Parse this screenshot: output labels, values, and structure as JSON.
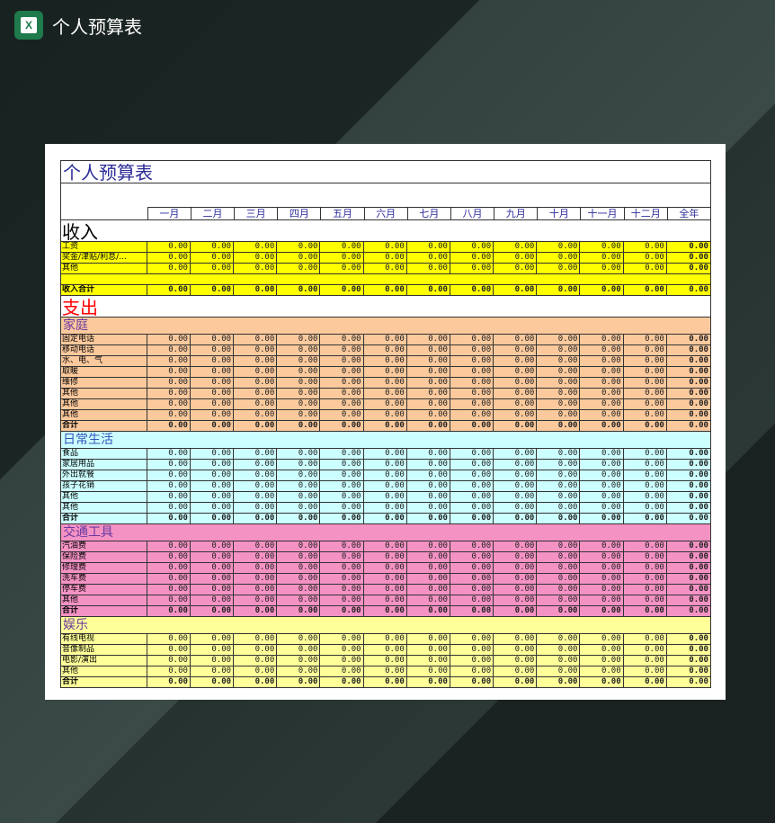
{
  "app": {
    "title": "个人预算表",
    "icon": "excel-icon"
  },
  "sheet": {
    "title": "个人预算表",
    "months": [
      "一月",
      "二月",
      "三月",
      "四月",
      "五月",
      "六月",
      "七月",
      "八月",
      "九月",
      "十月",
      "十一月",
      "十二月",
      "全年"
    ],
    "income": {
      "title": "收入",
      "color": "#ffff00",
      "rows": [
        {
          "label": "工资",
          "values": [
            "0.00",
            "0.00",
            "0.00",
            "0.00",
            "0.00",
            "0.00",
            "0.00",
            "0.00",
            "0.00",
            "0.00",
            "0.00",
            "0.00",
            "0.00"
          ]
        },
        {
          "label": "奖金/津贴/利息/…",
          "values": [
            "0.00",
            "0.00",
            "0.00",
            "0.00",
            "0.00",
            "0.00",
            "0.00",
            "0.00",
            "0.00",
            "0.00",
            "0.00",
            "0.00",
            "0.00"
          ]
        },
        {
          "label": "其他",
          "values": [
            "0.00",
            "0.00",
            "0.00",
            "0.00",
            "0.00",
            "0.00",
            "0.00",
            "0.00",
            "0.00",
            "0.00",
            "0.00",
            "0.00",
            "0.00"
          ]
        }
      ],
      "total": {
        "label": "收入合计",
        "values": [
          "0.00",
          "0.00",
          "0.00",
          "0.00",
          "0.00",
          "0.00",
          "0.00",
          "0.00",
          "0.00",
          "0.00",
          "0.00",
          "0.00",
          "0.00"
        ]
      }
    },
    "expense": {
      "title": "支出",
      "color": "#ff0000",
      "groups": [
        {
          "title": "家庭",
          "color": "#fbc99c",
          "rows": [
            {
              "label": "固定电话",
              "values": [
                "0.00",
                "0.00",
                "0.00",
                "0.00",
                "0.00",
                "0.00",
                "0.00",
                "0.00",
                "0.00",
                "0.00",
                "0.00",
                "0.00",
                "0.00"
              ]
            },
            {
              "label": "移动电话",
              "values": [
                "0.00",
                "0.00",
                "0.00",
                "0.00",
                "0.00",
                "0.00",
                "0.00",
                "0.00",
                "0.00",
                "0.00",
                "0.00",
                "0.00",
                "0.00"
              ]
            },
            {
              "label": "水、电、气",
              "values": [
                "0.00",
                "0.00",
                "0.00",
                "0.00",
                "0.00",
                "0.00",
                "0.00",
                "0.00",
                "0.00",
                "0.00",
                "0.00",
                "0.00",
                "0.00"
              ]
            },
            {
              "label": "取暖",
              "values": [
                "0.00",
                "0.00",
                "0.00",
                "0.00",
                "0.00",
                "0.00",
                "0.00",
                "0.00",
                "0.00",
                "0.00",
                "0.00",
                "0.00",
                "0.00"
              ]
            },
            {
              "label": "维修",
              "values": [
                "0.00",
                "0.00",
                "0.00",
                "0.00",
                "0.00",
                "0.00",
                "0.00",
                "0.00",
                "0.00",
                "0.00",
                "0.00",
                "0.00",
                "0.00"
              ]
            },
            {
              "label": "其他",
              "values": [
                "0.00",
                "0.00",
                "0.00",
                "0.00",
                "0.00",
                "0.00",
                "0.00",
                "0.00",
                "0.00",
                "0.00",
                "0.00",
                "0.00",
                "0.00"
              ]
            },
            {
              "label": "其他",
              "values": [
                "0.00",
                "0.00",
                "0.00",
                "0.00",
                "0.00",
                "0.00",
                "0.00",
                "0.00",
                "0.00",
                "0.00",
                "0.00",
                "0.00",
                "0.00"
              ]
            },
            {
              "label": "其他",
              "values": [
                "0.00",
                "0.00",
                "0.00",
                "0.00",
                "0.00",
                "0.00",
                "0.00",
                "0.00",
                "0.00",
                "0.00",
                "0.00",
                "0.00",
                "0.00"
              ]
            }
          ],
          "total": {
            "label": "合计",
            "values": [
              "0.00",
              "0.00",
              "0.00",
              "0.00",
              "0.00",
              "0.00",
              "0.00",
              "0.00",
              "0.00",
              "0.00",
              "0.00",
              "0.00",
              "0.00"
            ]
          }
        },
        {
          "title": "日常生活",
          "color": "#ccffff",
          "rows": [
            {
              "label": "食品",
              "values": [
                "0.00",
                "0.00",
                "0.00",
                "0.00",
                "0.00",
                "0.00",
                "0.00",
                "0.00",
                "0.00",
                "0.00",
                "0.00",
                "0.00",
                "0.00"
              ]
            },
            {
              "label": "家居用品",
              "values": [
                "0.00",
                "0.00",
                "0.00",
                "0.00",
                "0.00",
                "0.00",
                "0.00",
                "0.00",
                "0.00",
                "0.00",
                "0.00",
                "0.00",
                "0.00"
              ]
            },
            {
              "label": "外出就餐",
              "values": [
                "0.00",
                "0.00",
                "0.00",
                "0.00",
                "0.00",
                "0.00",
                "0.00",
                "0.00",
                "0.00",
                "0.00",
                "0.00",
                "0.00",
                "0.00"
              ]
            },
            {
              "label": "孩子花销",
              "values": [
                "0.00",
                "0.00",
                "0.00",
                "0.00",
                "0.00",
                "0.00",
                "0.00",
                "0.00",
                "0.00",
                "0.00",
                "0.00",
                "0.00",
                "0.00"
              ]
            },
            {
              "label": "其他",
              "values": [
                "0.00",
                "0.00",
                "0.00",
                "0.00",
                "0.00",
                "0.00",
                "0.00",
                "0.00",
                "0.00",
                "0.00",
                "0.00",
                "0.00",
                "0.00"
              ]
            },
            {
              "label": "其他",
              "values": [
                "0.00",
                "0.00",
                "0.00",
                "0.00",
                "0.00",
                "0.00",
                "0.00",
                "0.00",
                "0.00",
                "0.00",
                "0.00",
                "0.00",
                "0.00"
              ]
            }
          ],
          "total": {
            "label": "合计",
            "values": [
              "0.00",
              "0.00",
              "0.00",
              "0.00",
              "0.00",
              "0.00",
              "0.00",
              "0.00",
              "0.00",
              "0.00",
              "0.00",
              "0.00",
              "0.00"
            ]
          }
        },
        {
          "title": "交通工具",
          "color": "#f592c4",
          "rows": [
            {
              "label": "汽油费",
              "values": [
                "0.00",
                "0.00",
                "0.00",
                "0.00",
                "0.00",
                "0.00",
                "0.00",
                "0.00",
                "0.00",
                "0.00",
                "0.00",
                "0.00",
                "0.00"
              ]
            },
            {
              "label": "保险费",
              "values": [
                "0.00",
                "0.00",
                "0.00",
                "0.00",
                "0.00",
                "0.00",
                "0.00",
                "0.00",
                "0.00",
                "0.00",
                "0.00",
                "0.00",
                "0.00"
              ]
            },
            {
              "label": "修理费",
              "values": [
                "0.00",
                "0.00",
                "0.00",
                "0.00",
                "0.00",
                "0.00",
                "0.00",
                "0.00",
                "0.00",
                "0.00",
                "0.00",
                "0.00",
                "0.00"
              ]
            },
            {
              "label": "洗车费",
              "values": [
                "0.00",
                "0.00",
                "0.00",
                "0.00",
                "0.00",
                "0.00",
                "0.00",
                "0.00",
                "0.00",
                "0.00",
                "0.00",
                "0.00",
                "0.00"
              ]
            },
            {
              "label": "停车费",
              "values": [
                "0.00",
                "0.00",
                "0.00",
                "0.00",
                "0.00",
                "0.00",
                "0.00",
                "0.00",
                "0.00",
                "0.00",
                "0.00",
                "0.00",
                "0.00"
              ]
            },
            {
              "label": "其他",
              "values": [
                "0.00",
                "0.00",
                "0.00",
                "0.00",
                "0.00",
                "0.00",
                "0.00",
                "0.00",
                "0.00",
                "0.00",
                "0.00",
                "0.00",
                "0.00"
              ]
            }
          ],
          "total": {
            "label": "合计",
            "values": [
              "0.00",
              "0.00",
              "0.00",
              "0.00",
              "0.00",
              "0.00",
              "0.00",
              "0.00",
              "0.00",
              "0.00",
              "0.00",
              "0.00",
              "0.00"
            ]
          }
        },
        {
          "title": "娱乐",
          "color": "#ffff99",
          "rows": [
            {
              "label": "有线电视",
              "values": [
                "0.00",
                "0.00",
                "0.00",
                "0.00",
                "0.00",
                "0.00",
                "0.00",
                "0.00",
                "0.00",
                "0.00",
                "0.00",
                "0.00",
                "0.00"
              ]
            },
            {
              "label": "音像制品",
              "values": [
                "0.00",
                "0.00",
                "0.00",
                "0.00",
                "0.00",
                "0.00",
                "0.00",
                "0.00",
                "0.00",
                "0.00",
                "0.00",
                "0.00",
                "0.00"
              ]
            },
            {
              "label": "电影/演出",
              "values": [
                "0.00",
                "0.00",
                "0.00",
                "0.00",
                "0.00",
                "0.00",
                "0.00",
                "0.00",
                "0.00",
                "0.00",
                "0.00",
                "0.00",
                "0.00"
              ]
            },
            {
              "label": "其他",
              "values": [
                "0.00",
                "0.00",
                "0.00",
                "0.00",
                "0.00",
                "0.00",
                "0.00",
                "0.00",
                "0.00",
                "0.00",
                "0.00",
                "0.00",
                "0.00"
              ]
            }
          ],
          "total": {
            "label": "合计",
            "values": [
              "0.00",
              "0.00",
              "0.00",
              "0.00",
              "0.00",
              "0.00",
              "0.00",
              "0.00",
              "0.00",
              "0.00",
              "0.00",
              "0.00",
              "0.00"
            ]
          }
        }
      ]
    }
  }
}
